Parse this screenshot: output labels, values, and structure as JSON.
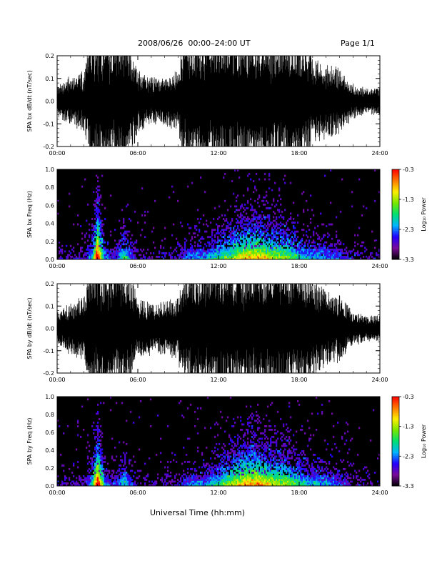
{
  "header": {
    "title": "2008/06/26  00:00–24:00 UT",
    "page": "Page 1/1"
  },
  "x_axis_title": "Universal Time (hh:mm)",
  "colors": {
    "background": "#ffffff",
    "plot_background": "#000000",
    "trace": "#000000",
    "colormap": [
      "#000000",
      "#7a0a9a",
      "#2200ff",
      "#00b4ff",
      "#00e070",
      "#78e800",
      "#ffee00",
      "#ff7800",
      "#ff0000"
    ]
  },
  "chart_data": [
    {
      "type": "line",
      "title": "",
      "xlabel": "",
      "ylabel": "SPA bx dB/dt (nT/sec)",
      "xlim": [
        "00:00",
        "24:00"
      ],
      "ylim": [
        -0.2,
        0.2
      ],
      "xticks": [
        "00:00",
        "06:00",
        "12:00",
        "18:00",
        "24:00"
      ],
      "yticks": [
        "-0.2",
        "-0.1",
        "0.0",
        "0.1",
        "0.2"
      ],
      "series": [
        {
          "x_hours": [
            0,
            1,
            2,
            2.5,
            3,
            3.5,
            4,
            4.5,
            5,
            5.5,
            6,
            7,
            8,
            9,
            9.5,
            10,
            11,
            12,
            13,
            14,
            15,
            16,
            17,
            18,
            19,
            20,
            21,
            22,
            23,
            24
          ],
          "amplitude": [
            0.05,
            0.07,
            0.09,
            0.2,
            0.2,
            0.2,
            0.18,
            0.2,
            0.2,
            0.16,
            0.09,
            0.07,
            0.07,
            0.09,
            0.2,
            0.2,
            0.2,
            0.2,
            0.2,
            0.2,
            0.2,
            0.2,
            0.2,
            0.19,
            0.14,
            0.11,
            0.1,
            0.05,
            0.04,
            0.04
          ]
        }
      ]
    },
    {
      "type": "heatmap",
      "title": "",
      "xlabel": "",
      "ylabel": "SPA bx Freq (Hz)",
      "xlim": [
        "00:00",
        "24:00"
      ],
      "ylim": [
        0.0,
        1.0
      ],
      "xticks": [
        "00:00",
        "06:00",
        "12:00",
        "18:00",
        "24:00"
      ],
      "yticks": [
        "0.0",
        "0.2",
        "0.4",
        "0.6",
        "0.8",
        "1.0"
      ],
      "colorbar": {
        "label": "Log₁₀ Power",
        "range": [
          -3.3,
          -0.3
        ],
        "ticks": [
          "-3.3",
          "-2.3",
          "-1.3",
          "-0.3"
        ]
      },
      "activity": {
        "x_hours": [
          0,
          1,
          2,
          2.5,
          3,
          3.5,
          4,
          4.5,
          5,
          5.5,
          6,
          7,
          8,
          9,
          9.5,
          10,
          11,
          12,
          13,
          14,
          15,
          16,
          17,
          18,
          19,
          20,
          21,
          22,
          23,
          24
        ],
        "level": [
          0.1,
          0.12,
          0.15,
          0.3,
          1.0,
          0.35,
          0.2,
          0.25,
          0.5,
          0.25,
          0.12,
          0.12,
          0.12,
          0.15,
          0.25,
          0.3,
          0.3,
          0.45,
          0.55,
          0.7,
          0.7,
          0.6,
          0.55,
          0.4,
          0.35,
          0.3,
          0.25,
          0.12,
          0.1,
          0.1
        ]
      }
    },
    {
      "type": "line",
      "title": "",
      "xlabel": "",
      "ylabel": "SPA by dB/dt (nT/sec)",
      "xlim": [
        "00:00",
        "24:00"
      ],
      "ylim": [
        -0.2,
        0.2
      ],
      "xticks": [
        "00:00",
        "06:00",
        "12:00",
        "18:00",
        "24:00"
      ],
      "yticks": [
        "-0.2",
        "-0.1",
        "0.0",
        "0.1",
        "0.2"
      ],
      "series": [
        {
          "x_hours": [
            0,
            1,
            2,
            2.5,
            3,
            3.5,
            4,
            4.5,
            5,
            5.5,
            6,
            7,
            8,
            9,
            9.5,
            10,
            11,
            12,
            13,
            14,
            15,
            16,
            17,
            18,
            19,
            20,
            21,
            22,
            23,
            24
          ],
          "amplitude": [
            0.05,
            0.08,
            0.1,
            0.2,
            0.2,
            0.2,
            0.17,
            0.2,
            0.2,
            0.15,
            0.09,
            0.08,
            0.08,
            0.1,
            0.18,
            0.2,
            0.2,
            0.2,
            0.2,
            0.2,
            0.2,
            0.2,
            0.2,
            0.19,
            0.15,
            0.12,
            0.1,
            0.05,
            0.04,
            0.04
          ]
        }
      ]
    },
    {
      "type": "heatmap",
      "title": "",
      "xlabel": "",
      "ylabel": "SPA by Freq (Hz)",
      "xlim": [
        "00:00",
        "24:00"
      ],
      "ylim": [
        0.0,
        1.0
      ],
      "xticks": [
        "00:00",
        "06:00",
        "12:00",
        "18:00",
        "24:00"
      ],
      "yticks": [
        "0.0",
        "0.2",
        "0.4",
        "0.6",
        "0.8",
        "1.0"
      ],
      "colorbar": {
        "label": "Log₁₀ Power",
        "range": [
          -3.3,
          -0.3
        ],
        "ticks": [
          "-3.3",
          "-2.3",
          "-1.3",
          "-0.3"
        ]
      },
      "activity": {
        "x_hours": [
          0,
          1,
          2,
          2.5,
          3,
          3.5,
          4,
          4.5,
          5,
          5.5,
          6,
          7,
          8,
          9,
          9.5,
          10,
          11,
          12,
          13,
          14,
          15,
          16,
          17,
          18,
          19,
          20,
          21,
          22,
          23,
          24
        ],
        "level": [
          0.1,
          0.12,
          0.15,
          0.3,
          1.0,
          0.35,
          0.2,
          0.25,
          0.45,
          0.25,
          0.12,
          0.12,
          0.12,
          0.15,
          0.25,
          0.3,
          0.3,
          0.45,
          0.6,
          0.75,
          0.75,
          0.65,
          0.6,
          0.45,
          0.35,
          0.35,
          0.25,
          0.12,
          0.1,
          0.1
        ]
      }
    }
  ]
}
